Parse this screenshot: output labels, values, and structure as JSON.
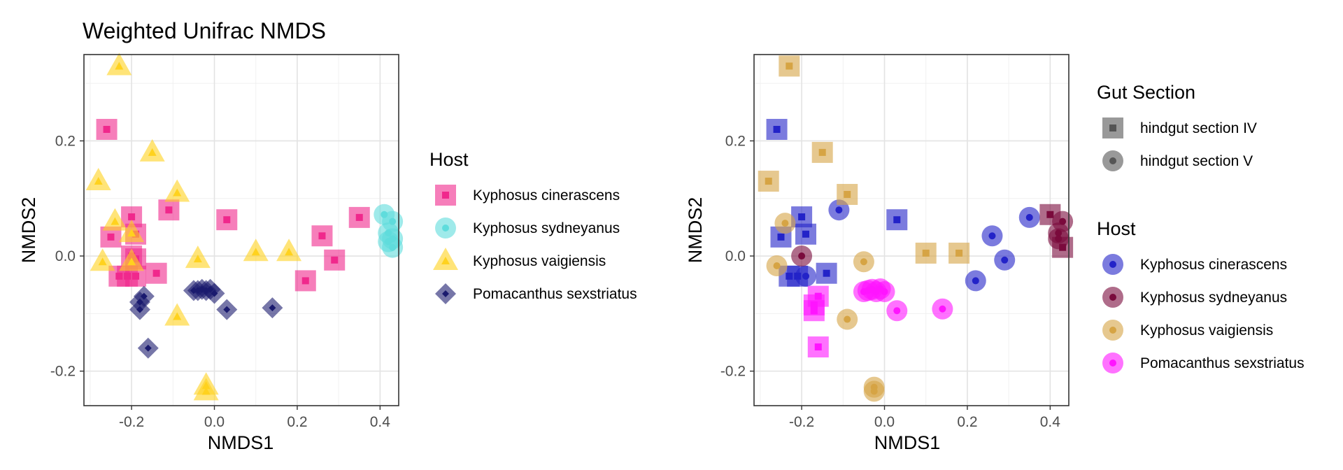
{
  "chart_data": [
    {
      "type": "scatter",
      "title": "Weighted Unifrac NMDS",
      "xlabel": "NMDS1",
      "ylabel": "NMDS2",
      "xlim": [
        -0.315,
        0.445
      ],
      "ylim": [
        -0.26,
        0.35
      ],
      "xticks": [
        -0.2,
        0.0,
        0.2,
        0.4
      ],
      "xtick_labels": [
        "-0.2",
        "0.0",
        "0.2",
        "0.4"
      ],
      "yticks": [
        -0.2,
        0.0,
        0.2
      ],
      "ytick_labels": [
        "-0.2",
        "0.0",
        "0.2"
      ],
      "grid": true,
      "legend": {
        "title": "Host",
        "position": "right",
        "entries": [
          {
            "label": "Kyphosus cinerascens",
            "shape": "square",
            "color": "#f0288c"
          },
          {
            "label": "Kyphosus sydneyanus",
            "shape": "circle",
            "color": "#5fdcdc"
          },
          {
            "label": "Kyphosus vaigiensis",
            "shape": "triangle",
            "color": "#ffd21e"
          },
          {
            "label": "Pomacanthus sexstriatus",
            "shape": "diamond",
            "color": "#1a1a6e"
          }
        ]
      },
      "series": [
        {
          "name": "Kyphosus cinerascens",
          "shape": "square",
          "color": "#f0288c",
          "points": [
            [
              -0.26,
              0.22
            ],
            [
              -0.25,
              0.033
            ],
            [
              -0.2,
              0.068
            ],
            [
              -0.19,
              0.038
            ],
            [
              -0.11,
              0.08
            ],
            [
              0.03,
              0.063
            ],
            [
              -0.2,
              0.0
            ],
            [
              -0.19,
              -0.005
            ],
            [
              -0.23,
              -0.035
            ],
            [
              -0.21,
              -0.035
            ],
            [
              -0.19,
              -0.035
            ],
            [
              -0.14,
              -0.03
            ],
            [
              0.22,
              -0.043
            ],
            [
              0.26,
              0.035
            ],
            [
              0.29,
              -0.007
            ],
            [
              0.35,
              0.067
            ]
          ]
        },
        {
          "name": "Kyphosus sydneyanus",
          "shape": "circle",
          "color": "#5fdcdc",
          "points": [
            [
              0.41,
              0.072
            ],
            [
              0.43,
              0.06
            ],
            [
              0.42,
              0.04
            ],
            [
              0.43,
              0.03
            ],
            [
              0.43,
              0.015
            ],
            [
              0.42,
              0.025
            ]
          ]
        },
        {
          "name": "Kyphosus vaigiensis",
          "shape": "triangle",
          "color": "#ffd21e",
          "points": [
            [
              -0.23,
              0.33
            ],
            [
              -0.28,
              0.13
            ],
            [
              -0.15,
              0.18
            ],
            [
              -0.09,
              0.11
            ],
            [
              -0.24,
              0.06
            ],
            [
              -0.2,
              0.04
            ],
            [
              -0.27,
              -0.01
            ],
            [
              -0.2,
              -0.01
            ],
            [
              -0.04,
              -0.005
            ],
            [
              0.1,
              0.007
            ],
            [
              0.18,
              0.007
            ],
            [
              -0.09,
              -0.105
            ],
            [
              -0.02,
              -0.225
            ],
            [
              -0.02,
              -0.235
            ]
          ]
        },
        {
          "name": "Pomacanthus sexstriatus",
          "shape": "diamond",
          "color": "#1a1a6e",
          "points": [
            [
              -0.05,
              -0.06
            ],
            [
              -0.04,
              -0.06
            ],
            [
              -0.03,
              -0.058
            ],
            [
              -0.02,
              -0.06
            ],
            [
              -0.01,
              -0.058
            ],
            [
              0.0,
              -0.065
            ],
            [
              -0.17,
              -0.07
            ],
            [
              -0.18,
              -0.08
            ],
            [
              -0.18,
              -0.093
            ],
            [
              -0.16,
              -0.16
            ],
            [
              0.03,
              -0.093
            ],
            [
              0.14,
              -0.09
            ]
          ]
        }
      ]
    },
    {
      "type": "scatter",
      "title": "",
      "xlabel": "NMDS1",
      "ylabel": "NMDS2",
      "xlim": [
        -0.315,
        0.445
      ],
      "ylim": [
        -0.26,
        0.35
      ],
      "xticks": [
        -0.2,
        0.0,
        0.2,
        0.4
      ],
      "xtick_labels": [
        "-0.2",
        "0.0",
        "0.2",
        "0.4"
      ],
      "yticks": [
        -0.2,
        0.0,
        0.2
      ],
      "ytick_labels": [
        "-0.2",
        "0.0",
        "0.2"
      ],
      "grid": true,
      "legends": [
        {
          "title": "Gut Section",
          "position": "right",
          "entries": [
            {
              "label": "hindgut section IV",
              "shape": "square",
              "color": "#555555"
            },
            {
              "label": "hindgut section V",
              "shape": "circle",
              "color": "#555555"
            }
          ]
        },
        {
          "title": "Host",
          "position": "right",
          "entries": [
            {
              "label": "Kyphosus cinerascens",
              "shape": "circle",
              "color": "#2323c8"
            },
            {
              "label": "Kyphosus sydneyanus",
              "shape": "circle",
              "color": "#7a0a3c"
            },
            {
              "label": "Kyphosus vaigiensis",
              "shape": "circle",
              "color": "#d6a444"
            },
            {
              "label": "Pomacanthus sexstriatus",
              "shape": "circle",
              "color": "#ff14ff"
            }
          ]
        }
      ],
      "series": [
        {
          "name": "Kyphosus cinerascens",
          "color": "#2323c8",
          "points": [
            {
              "x": -0.26,
              "y": 0.22,
              "gut": "hindgut section IV"
            },
            {
              "x": -0.25,
              "y": 0.033,
              "gut": "hindgut section IV"
            },
            {
              "x": -0.2,
              "y": 0.068,
              "gut": "hindgut section IV"
            },
            {
              "x": -0.19,
              "y": 0.038,
              "gut": "hindgut section IV"
            },
            {
              "x": 0.03,
              "y": 0.063,
              "gut": "hindgut section IV"
            },
            {
              "x": -0.23,
              "y": -0.035,
              "gut": "hindgut section IV"
            },
            {
              "x": -0.21,
              "y": -0.035,
              "gut": "hindgut section IV"
            },
            {
              "x": -0.14,
              "y": -0.03,
              "gut": "hindgut section IV"
            },
            {
              "x": -0.11,
              "y": 0.08,
              "gut": "hindgut section V"
            },
            {
              "x": -0.19,
              "y": -0.035,
              "gut": "hindgut section V"
            },
            {
              "x": 0.22,
              "y": -0.043,
              "gut": "hindgut section V"
            },
            {
              "x": 0.26,
              "y": 0.035,
              "gut": "hindgut section V"
            },
            {
              "x": 0.29,
              "y": -0.007,
              "gut": "hindgut section V"
            },
            {
              "x": 0.35,
              "y": 0.067,
              "gut": "hindgut section V"
            }
          ]
        },
        {
          "name": "Kyphosus sydneyanus",
          "color": "#7a0a3c",
          "points": [
            {
              "x": -0.2,
              "y": 0.0,
              "gut": "hindgut section V"
            },
            {
              "x": 0.4,
              "y": 0.072,
              "gut": "hindgut section IV"
            },
            {
              "x": 0.43,
              "y": 0.06,
              "gut": "hindgut section V"
            },
            {
              "x": 0.42,
              "y": 0.04,
              "gut": "hindgut section V"
            },
            {
              "x": 0.42,
              "y": 0.03,
              "gut": "hindgut section V"
            },
            {
              "x": 0.43,
              "y": 0.015,
              "gut": "hindgut section IV"
            }
          ]
        },
        {
          "name": "Kyphosus vaigiensis",
          "color": "#d6a444",
          "points": [
            {
              "x": -0.23,
              "y": 0.33,
              "gut": "hindgut section IV"
            },
            {
              "x": -0.28,
              "y": 0.13,
              "gut": "hindgut section IV"
            },
            {
              "x": -0.15,
              "y": 0.18,
              "gut": "hindgut section IV"
            },
            {
              "x": -0.09,
              "y": 0.107,
              "gut": "hindgut section IV"
            },
            {
              "x": 0.1,
              "y": 0.005,
              "gut": "hindgut section IV"
            },
            {
              "x": 0.18,
              "y": 0.005,
              "gut": "hindgut section IV"
            },
            {
              "x": -0.24,
              "y": 0.057,
              "gut": "hindgut section V"
            },
            {
              "x": -0.26,
              "y": -0.017,
              "gut": "hindgut section V"
            },
            {
              "x": -0.05,
              "y": -0.01,
              "gut": "hindgut section V"
            },
            {
              "x": -0.09,
              "y": -0.11,
              "gut": "hindgut section V"
            },
            {
              "x": -0.025,
              "y": -0.228,
              "gut": "hindgut section V"
            },
            {
              "x": -0.025,
              "y": -0.235,
              "gut": "hindgut section V"
            }
          ]
        },
        {
          "name": "Pomacanthus sexstriatus",
          "color": "#ff14ff",
          "points": [
            {
              "x": -0.05,
              "y": -0.062,
              "gut": "hindgut section V"
            },
            {
              "x": -0.04,
              "y": -0.06,
              "gut": "hindgut section V"
            },
            {
              "x": -0.03,
              "y": -0.058,
              "gut": "hindgut section V"
            },
            {
              "x": -0.02,
              "y": -0.062,
              "gut": "hindgut section V"
            },
            {
              "x": -0.01,
              "y": -0.057,
              "gut": "hindgut section V"
            },
            {
              "x": 0.0,
              "y": -0.062,
              "gut": "hindgut section V"
            },
            {
              "x": -0.16,
              "y": -0.07,
              "gut": "hindgut section IV"
            },
            {
              "x": -0.17,
              "y": -0.085,
              "gut": "hindgut section IV"
            },
            {
              "x": -0.17,
              "y": -0.095,
              "gut": "hindgut section IV"
            },
            {
              "x": -0.16,
              "y": -0.158,
              "gut": "hindgut section IV"
            },
            {
              "x": 0.03,
              "y": -0.095,
              "gut": "hindgut section V"
            },
            {
              "x": 0.14,
              "y": -0.092,
              "gut": "hindgut section V"
            }
          ]
        }
      ]
    }
  ]
}
